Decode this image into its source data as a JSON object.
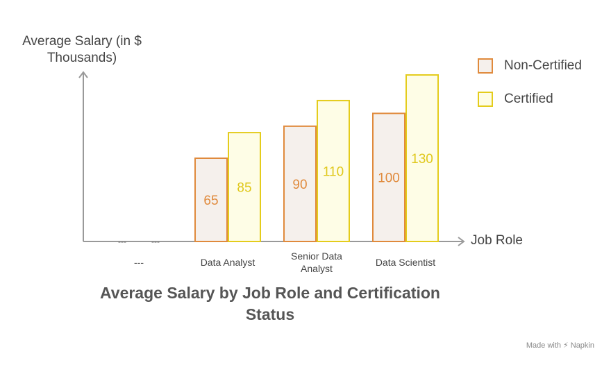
{
  "chart_data": {
    "type": "bar",
    "title": "Average Salary by Job Role and Certification Status",
    "ylabel": "Average Salary (in $ Thousands)",
    "xlabel": "Job Role",
    "categories": [
      "---",
      "Data Analyst",
      "Senior Data Analyst",
      "Data Scientist"
    ],
    "series": [
      {
        "name": "Non-Certified",
        "values": [
          null,
          65,
          90,
          100
        ],
        "color": "#f5f0ec",
        "border": "#e08a3c",
        "label_color": "#e08a3c"
      },
      {
        "name": "Certified",
        "values": [
          null,
          85,
          110,
          130
        ],
        "color": "#fefde6",
        "border": "#e4cc1c",
        "label_color": "#e0c81c"
      }
    ],
    "missing_marker": "---",
    "ylim": [
      0,
      140
    ],
    "grid": false,
    "legend": "top-right"
  },
  "footer": {
    "made_with": "Made with",
    "brand": "Napkin"
  }
}
